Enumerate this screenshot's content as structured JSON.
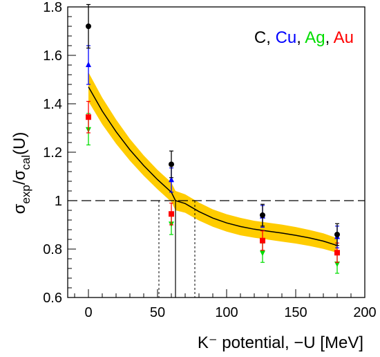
{
  "chart_data": {
    "type": "scatter",
    "title": "",
    "xlabel": "K⁻ potential, −U [MeV]",
    "ylabel": {
      "prefix": "σ",
      "sub1": "exp",
      "slash": "/σ",
      "sub2": "cal",
      "suffix": "(U)"
    },
    "xlim": [
      -15,
      200
    ],
    "ylim": [
      0.6,
      1.8
    ],
    "x_ticks": [
      0,
      50,
      100,
      150,
      200
    ],
    "y_ticks": [
      0.6,
      0.8,
      1,
      1.2,
      1.4,
      1.6,
      1.8
    ],
    "x_tick_labels": [
      "0",
      "50",
      "100",
      "150",
      "200"
    ],
    "y_tick_labels": [
      "0.6",
      "0.8",
      "1",
      "1.2",
      "1.4",
      "1.6",
      "1.8"
    ],
    "grid": false,
    "legend_position": "top-right",
    "legend": [
      {
        "text": "C",
        "color": "#000000"
      },
      {
        "text": ", ",
        "color": "#000000"
      },
      {
        "text": "Cu",
        "color": "#0000ff"
      },
      {
        "text": ", ",
        "color": "#000000"
      },
      {
        "text": "Ag",
        "color": "#00dd00"
      },
      {
        "text": ", ",
        "color": "#000000"
      },
      {
        "text": "Au",
        "color": "#ff0000"
      }
    ],
    "series": [
      {
        "name": "C",
        "color": "#000000",
        "marker": "circle",
        "points": [
          {
            "x": 0,
            "y": 1.72,
            "err": 0.09
          },
          {
            "x": 60,
            "y": 1.15,
            "err": 0.055
          },
          {
            "x": 126,
            "y": 0.94,
            "err": 0.045
          },
          {
            "x": 180,
            "y": 0.86,
            "err": 0.045
          }
        ]
      },
      {
        "name": "Cu",
        "color": "#0000ff",
        "marker": "triangle-up",
        "points": [
          {
            "x": 0,
            "y": 1.56,
            "err": 0.08
          },
          {
            "x": 60,
            "y": 1.085,
            "err": 0.05
          },
          {
            "x": 126,
            "y": 0.935,
            "err": 0.045
          },
          {
            "x": 180,
            "y": 0.85,
            "err": 0.045
          }
        ]
      },
      {
        "name": "Ag",
        "color": "#00dd00",
        "marker": "triangle-down",
        "points": [
          {
            "x": 0,
            "y": 1.295,
            "err": 0.065
          },
          {
            "x": 60,
            "y": 0.905,
            "err": 0.045
          },
          {
            "x": 126,
            "y": 0.785,
            "err": 0.04
          },
          {
            "x": 180,
            "y": 0.74,
            "err": 0.04
          }
        ]
      },
      {
        "name": "Au",
        "color": "#ff0000",
        "marker": "square",
        "points": [
          {
            "x": 0,
            "y": 1.345,
            "err": 0.065
          },
          {
            "x": 60,
            "y": 0.945,
            "err": 0.045
          },
          {
            "x": 126,
            "y": 0.835,
            "err": 0.04
          },
          {
            "x": 180,
            "y": 0.785,
            "err": 0.04
          }
        ]
      }
    ],
    "fit_curve": {
      "color": "#000000",
      "band_color": "#ffcc00",
      "x_range": [
        0,
        180
      ],
      "points": [
        {
          "x": 0,
          "y": 1.47,
          "band": 0.06
        },
        {
          "x": 10,
          "y": 1.37,
          "band": 0.055
        },
        {
          "x": 20,
          "y": 1.285,
          "band": 0.05
        },
        {
          "x": 30,
          "y": 1.21,
          "band": 0.045
        },
        {
          "x": 40,
          "y": 1.145,
          "band": 0.042
        },
        {
          "x": 50,
          "y": 1.087,
          "band": 0.04
        },
        {
          "x": 60,
          "y": 1.035,
          "band": 0.04
        },
        {
          "x": 63,
          "y": 1.0,
          "band": 0.04
        },
        {
          "x": 70,
          "y": 0.988,
          "band": 0.038
        },
        {
          "x": 80,
          "y": 0.955,
          "band": 0.037
        },
        {
          "x": 90,
          "y": 0.928,
          "band": 0.036
        },
        {
          "x": 100,
          "y": 0.908,
          "band": 0.036
        },
        {
          "x": 110,
          "y": 0.893,
          "band": 0.036
        },
        {
          "x": 120,
          "y": 0.882,
          "band": 0.035
        },
        {
          "x": 130,
          "y": 0.874,
          "band": 0.035
        },
        {
          "x": 140,
          "y": 0.866,
          "band": 0.035
        },
        {
          "x": 150,
          "y": 0.857,
          "band": 0.034
        },
        {
          "x": 160,
          "y": 0.846,
          "band": 0.033
        },
        {
          "x": 170,
          "y": 0.833,
          "band": 0.032
        },
        {
          "x": 180,
          "y": 0.815,
          "band": 0.03
        }
      ]
    },
    "reference_line": {
      "y": 1,
      "style": "dashed"
    },
    "crossing": {
      "x": 63,
      "low": 51,
      "high": 77
    }
  }
}
